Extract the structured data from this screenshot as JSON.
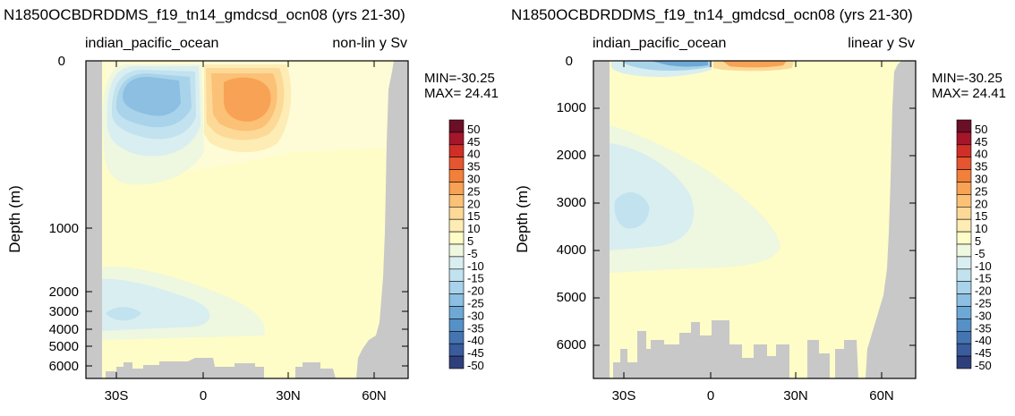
{
  "colorbar_levels": [
    "50",
    "45",
    "40",
    "35",
    "30",
    "25",
    "20",
    "15",
    "10",
    "5",
    "-5",
    "-10",
    "-15",
    "-20",
    "-25",
    "-30",
    "-35",
    "-40",
    "-45",
    "-50"
  ],
  "colorbar_colors": [
    "#6b0f26",
    "#a5162a",
    "#cf2f27",
    "#e55530",
    "#f27f3a",
    "#f8a255",
    "#fbc176",
    "#fcd997",
    "#fdecb4",
    "#fefdc7",
    "#eef7df",
    "#d9eef0",
    "#c1e2ee",
    "#a8d3ea",
    "#8cbfe1",
    "#6ea9d6",
    "#5590c7",
    "#4475b2",
    "#3a5b9c",
    "#2f3f7b"
  ],
  "chart_data": [
    {
      "type": "heatmap",
      "title": "N1850OCBDRDDMS_f19_tn14_gmdcsd_ocn08 (yrs 21-30)",
      "left_label": "indian_pacific_ocean",
      "right_label": "non-lin y Sv",
      "ylabel": "Depth (m)",
      "yscale": "non-linear",
      "min_text": "MIN=-30.25",
      "max_text": "MAX= 24.41",
      "x_ticks": [
        "30S",
        "0",
        "30N",
        "60N"
      ],
      "y_ticks": [
        "0",
        "1000",
        "2000",
        "3000",
        "4000",
        "5000",
        "6000"
      ],
      "extrema": {
        "min": -30.25,
        "max": 24.41
      }
    },
    {
      "type": "heatmap",
      "title": "N1850OCBDRDDMS_f19_tn14_gmdcsd_ocn08 (yrs 21-30)",
      "left_label": "indian_pacific_ocean",
      "right_label": "linear y Sv",
      "ylabel": "Depth (m)",
      "yscale": "linear",
      "min_text": "MIN=-30.25",
      "max_text": "MAX= 24.41",
      "x_ticks": [
        "30S",
        "0",
        "30N",
        "60N"
      ],
      "y_ticks": [
        "0",
        "1000",
        "2000",
        "3000",
        "4000",
        "5000",
        "6000"
      ],
      "extrema": {
        "min": -30.25,
        "max": 24.41
      }
    }
  ]
}
